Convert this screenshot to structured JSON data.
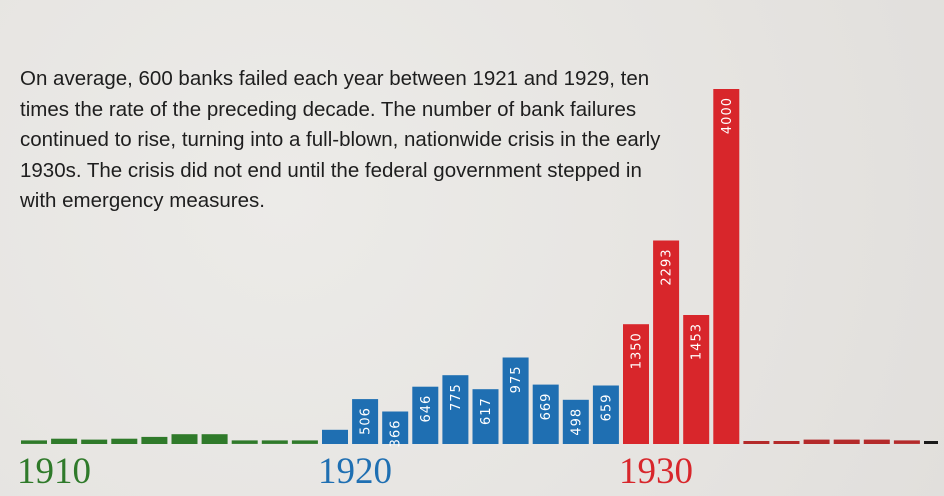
{
  "description": "On average, 600 banks failed each year between 1921 and 1929, ten times the rate of the preceding decade. The number of bank failures continued to rise, turning into a full-blown, nationwide crisis in the early 1930s. The crisis did not end until the federal government stepped in with emergency measures.",
  "colors": {
    "decade_1910": "#2f7a2a",
    "decade_1920": "#1f6fb2",
    "decade_1930": "#d8262b",
    "after_1933": "#b42a2a",
    "trail": "#1a1a1a"
  },
  "chart_data": {
    "type": "bar",
    "decade_labels": [
      {
        "text": "1910",
        "year": 1910,
        "group": "decade_1910"
      },
      {
        "text": "1920",
        "year": 1920,
        "group": "decade_1920"
      },
      {
        "text": "1930",
        "year": 1930,
        "group": "decade_1930"
      }
    ],
    "bars": [
      {
        "year": 1910,
        "value": 40,
        "group": "decade_1910"
      },
      {
        "year": 1911,
        "value": 60,
        "group": "decade_1910"
      },
      {
        "year": 1912,
        "value": 50,
        "group": "decade_1910"
      },
      {
        "year": 1913,
        "value": 60,
        "group": "decade_1910"
      },
      {
        "year": 1914,
        "value": 80,
        "group": "decade_1910"
      },
      {
        "year": 1915,
        "value": 110,
        "group": "decade_1910"
      },
      {
        "year": 1916,
        "value": 110,
        "group": "decade_1910"
      },
      {
        "year": 1917,
        "value": 40,
        "group": "decade_1910"
      },
      {
        "year": 1918,
        "value": 40,
        "group": "decade_1910"
      },
      {
        "year": 1919,
        "value": 40,
        "group": "decade_1910"
      },
      {
        "year": 1920,
        "value": 160,
        "group": "decade_1920"
      },
      {
        "year": 1921,
        "value": 506,
        "label": "506",
        "group": "decade_1920"
      },
      {
        "year": 1922,
        "value": 366,
        "label": "366",
        "group": "decade_1920"
      },
      {
        "year": 1923,
        "value": 646,
        "label": "646",
        "group": "decade_1920"
      },
      {
        "year": 1924,
        "value": 775,
        "label": "775",
        "group": "decade_1920"
      },
      {
        "year": 1925,
        "value": 617,
        "label": "617",
        "group": "decade_1920"
      },
      {
        "year": 1926,
        "value": 975,
        "label": "975",
        "group": "decade_1920"
      },
      {
        "year": 1927,
        "value": 669,
        "label": "669",
        "group": "decade_1920"
      },
      {
        "year": 1928,
        "value": 498,
        "label": "498",
        "group": "decade_1920"
      },
      {
        "year": 1929,
        "value": 659,
        "label": "659",
        "group": "decade_1920"
      },
      {
        "year": 1930,
        "value": 1350,
        "label": "1350",
        "group": "decade_1930"
      },
      {
        "year": 1931,
        "value": 2293,
        "label": "2293",
        "group": "decade_1930"
      },
      {
        "year": 1932,
        "value": 1453,
        "label": "1453",
        "group": "decade_1930"
      },
      {
        "year": 1933,
        "value": 4000,
        "label": "4000",
        "group": "decade_1930"
      },
      {
        "year": 1934,
        "value": 10,
        "group": "after_1933"
      },
      {
        "year": 1935,
        "value": 30,
        "group": "after_1933"
      },
      {
        "year": 1936,
        "value": 50,
        "group": "after_1933"
      },
      {
        "year": 1937,
        "value": 50,
        "group": "after_1933"
      },
      {
        "year": 1938,
        "value": 50,
        "group": "after_1933"
      },
      {
        "year": 1939,
        "value": 40,
        "group": "after_1933"
      },
      {
        "year": 1940,
        "value": 30,
        "group": "trail"
      }
    ],
    "ylim": [
      0,
      4000
    ],
    "grid": false,
    "legend": "none"
  }
}
